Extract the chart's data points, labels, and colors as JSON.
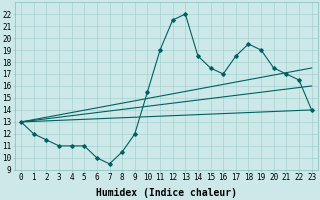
{
  "xlabel": "Humidex (Indice chaleur)",
  "xlim": [
    -0.5,
    23.5
  ],
  "ylim": [
    9,
    23
  ],
  "xticks": [
    0,
    1,
    2,
    3,
    4,
    5,
    6,
    7,
    8,
    9,
    10,
    11,
    12,
    13,
    14,
    15,
    16,
    17,
    18,
    19,
    20,
    21,
    22,
    23
  ],
  "yticks": [
    9,
    10,
    11,
    12,
    13,
    14,
    15,
    16,
    17,
    18,
    19,
    20,
    21,
    22
  ],
  "bg_color": "#cce8e8",
  "line_color": "#006060",
  "curve1_x": [
    0,
    1,
    2,
    3,
    4,
    5,
    6,
    7,
    8,
    9,
    10,
    11,
    12,
    13,
    14,
    15,
    16,
    17,
    18,
    19,
    20,
    21,
    22,
    23
  ],
  "curve1_y": [
    13.0,
    12.0,
    11.5,
    11.0,
    11.0,
    11.0,
    10.0,
    9.5,
    10.5,
    12.0,
    15.5,
    19.0,
    21.5,
    22.0,
    18.5,
    17.5,
    17.0,
    18.5,
    19.5,
    19.0,
    17.5,
    17.0,
    16.5,
    14.0
  ],
  "curve2_x": [
    0,
    23
  ],
  "curve2_y": [
    13.0,
    17.5
  ],
  "curve3_x": [
    0,
    23
  ],
  "curve3_y": [
    13.0,
    16.0
  ],
  "curve4_x": [
    0,
    23
  ],
  "curve4_y": [
    13.0,
    14.0
  ],
  "font_size_label": 6.5,
  "font_size_tick": 5.5,
  "font_size_xlabel": 7.0
}
